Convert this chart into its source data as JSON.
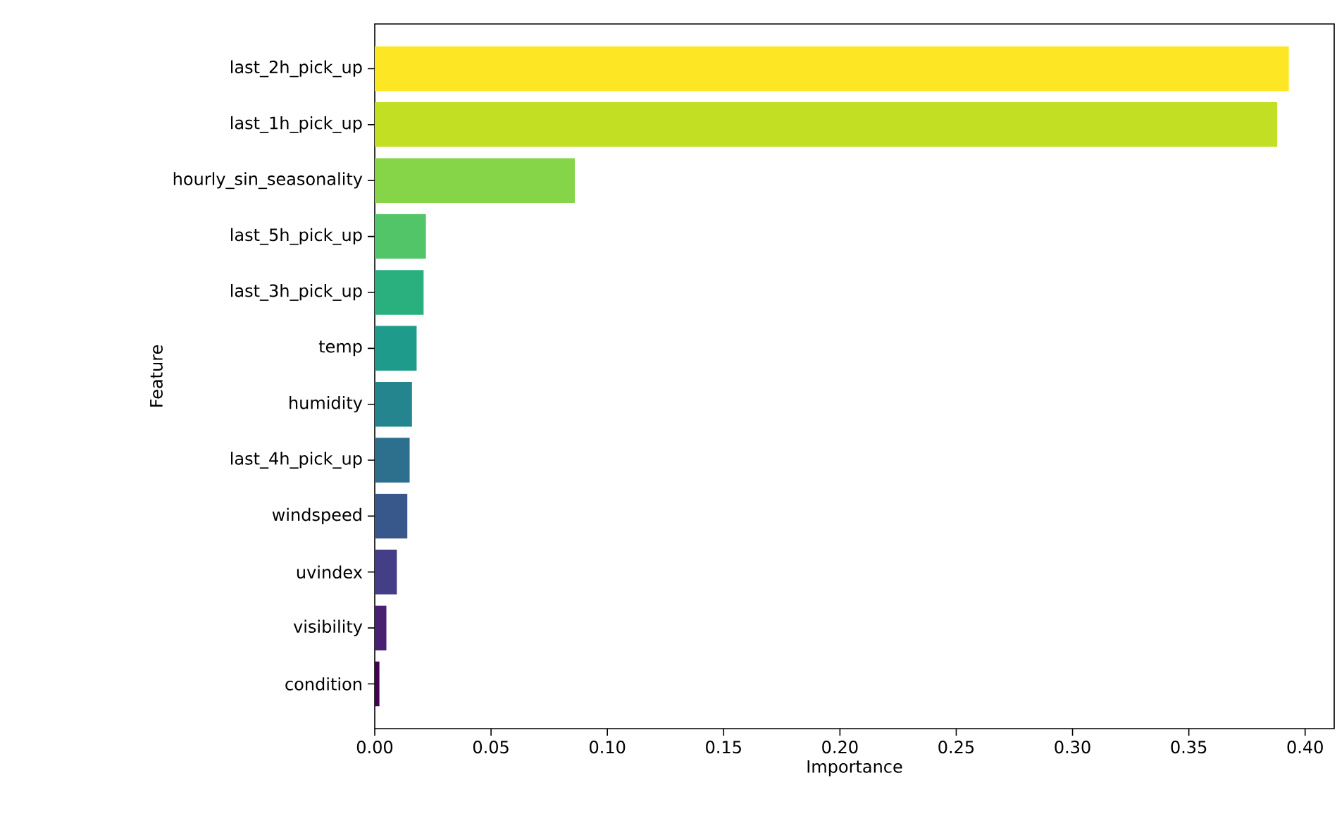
{
  "chart_data": {
    "type": "bar",
    "orientation": "horizontal",
    "xlabel": "Importance",
    "ylabel": "Feature",
    "categories": [
      "last_2h_pick_up",
      "last_1h_pick_up",
      "hourly_sin_seasonality",
      "last_5h_pick_up",
      "last_3h_pick_up",
      "temp",
      "humidity",
      "last_4h_pick_up",
      "windspeed",
      "uvindex",
      "visibility",
      "condition"
    ],
    "values": [
      0.393,
      0.388,
      0.086,
      0.022,
      0.021,
      0.018,
      0.016,
      0.015,
      0.014,
      0.0095,
      0.005,
      0.002
    ],
    "colors": [
      "#fde725",
      "#c2df23",
      "#86d549",
      "#52c569",
      "#2ab07f",
      "#1e9b8a",
      "#25858e",
      "#2d708e",
      "#38588c",
      "#433e85",
      "#482173",
      "#440154"
    ],
    "xlim": [
      0,
      0.4125
    ],
    "xticks": [
      {
        "value": 0,
        "label": "0.00"
      },
      {
        "value": 0.05,
        "label": "0.05"
      },
      {
        "value": 0.1,
        "label": "0.10"
      },
      {
        "value": 0.15,
        "label": "0.15"
      },
      {
        "value": 0.2,
        "label": "0.20"
      },
      {
        "value": 0.25,
        "label": "0.25"
      },
      {
        "value": 0.3,
        "label": "0.30"
      },
      {
        "value": 0.35,
        "label": "0.35"
      },
      {
        "value": 0.4,
        "label": "0.40"
      }
    ],
    "grid": false
  }
}
